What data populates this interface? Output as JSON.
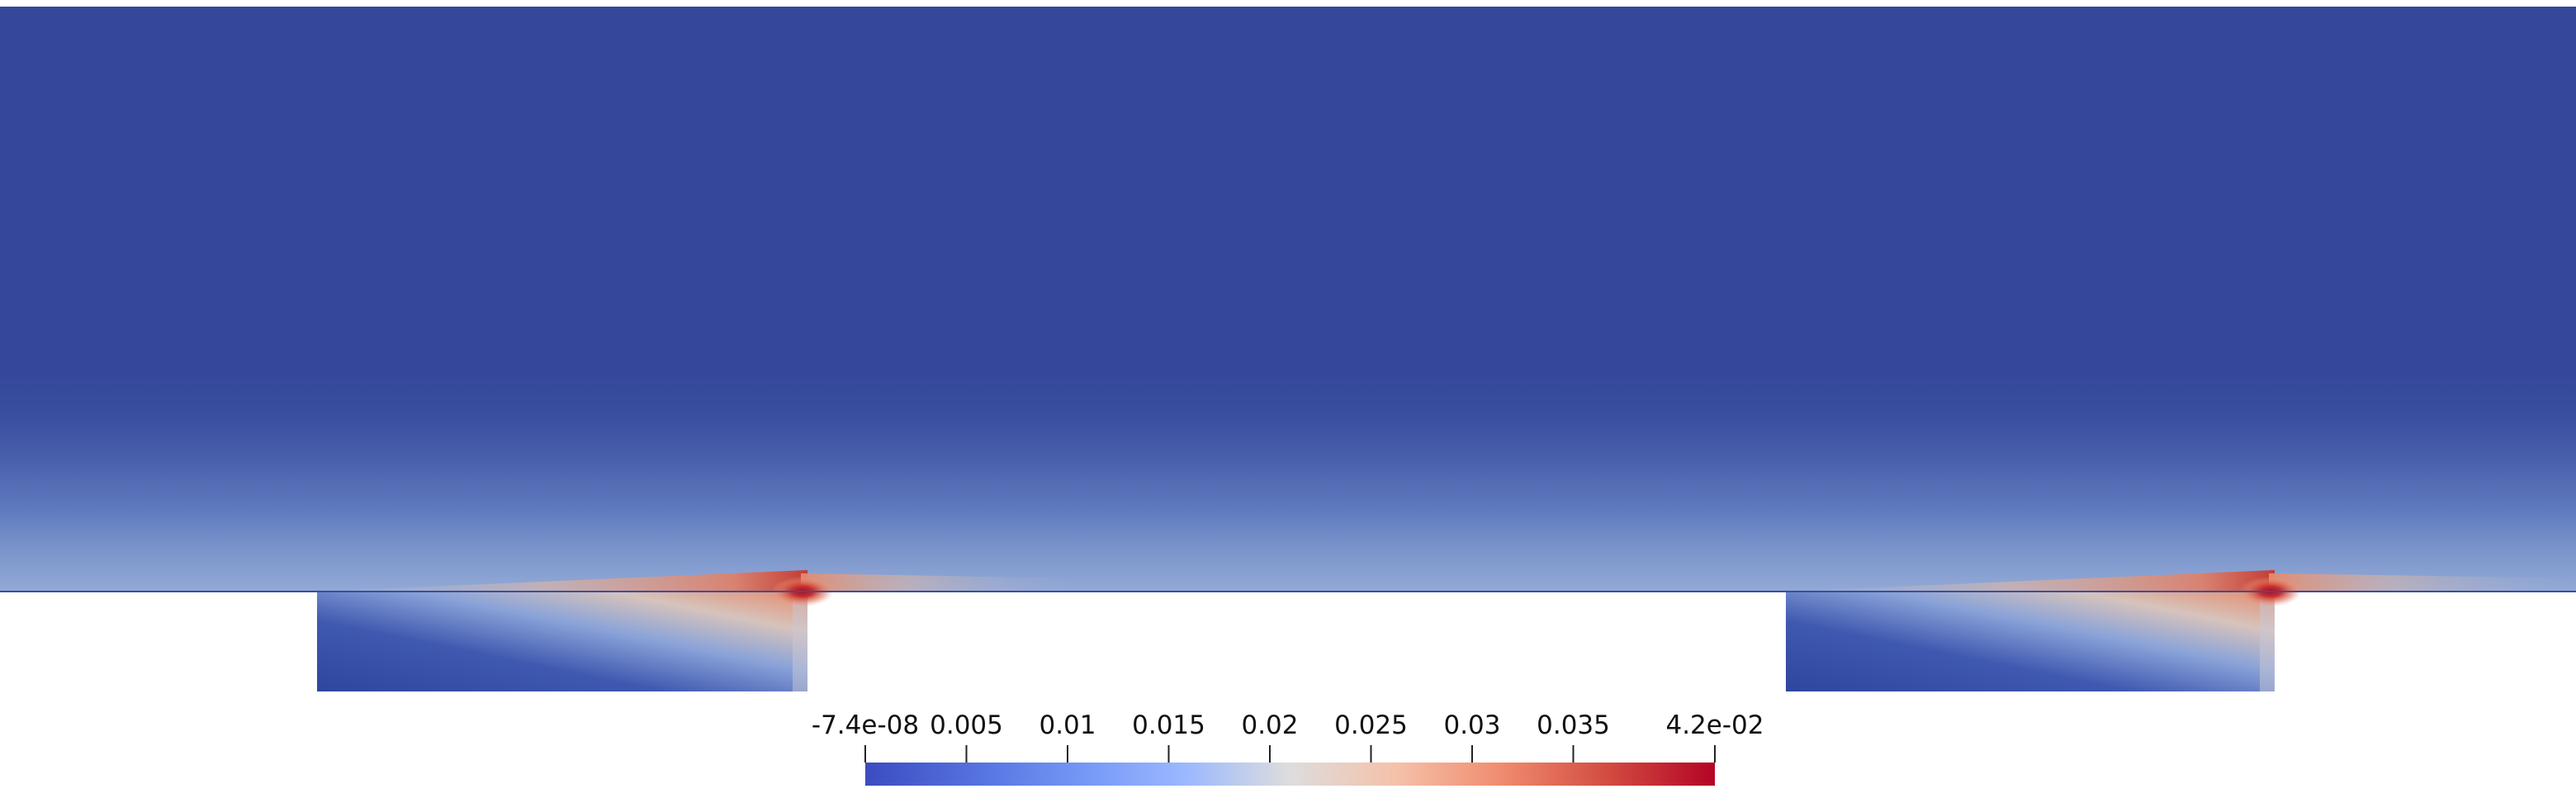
{
  "colorbar": {
    "tick_labels": [
      "-7.4e-08",
      "0.005",
      "0.01",
      "0.015",
      "0.02",
      "0.025",
      "0.03",
      "0.035",
      "4.2e-02"
    ],
    "tick_values": [
      -7.4e-08,
      0.005,
      0.01,
      0.015,
      0.02,
      0.025,
      0.03,
      0.035,
      0.042
    ],
    "range": [
      -7.4e-08,
      0.042
    ],
    "colormap": "cool-to-warm",
    "colors": {
      "low": "#3b4cc0",
      "mid": "#dddddd",
      "high": "#b40426"
    }
  },
  "field_colors": {
    "background_flow": "#34479a",
    "boundary_layer": "#8ea6d6",
    "hotspot": "#b30a1c",
    "cavity_corner": "#2e46a0"
  }
}
